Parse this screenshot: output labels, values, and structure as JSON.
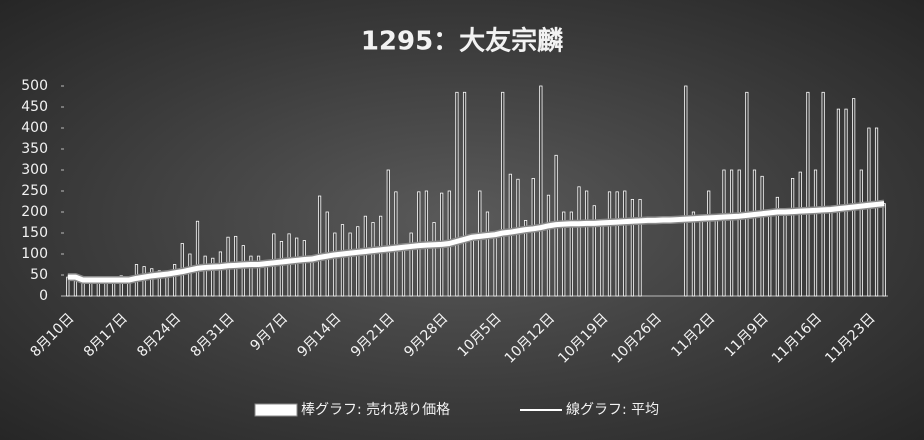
{
  "chart_data": {
    "type": "combo",
    "title": "1295：大友宗麟",
    "categories": [
      "8月10日",
      null,
      null,
      null,
      null,
      null,
      null,
      "8月17日",
      null,
      null,
      null,
      null,
      null,
      null,
      "8月24日",
      null,
      null,
      null,
      null,
      null,
      null,
      "8月31日",
      null,
      null,
      null,
      null,
      null,
      null,
      "9月7日",
      null,
      null,
      null,
      null,
      null,
      null,
      "9月14日",
      null,
      null,
      null,
      null,
      null,
      null,
      "9月21日",
      null,
      null,
      null,
      null,
      null,
      null,
      "9月28日",
      null,
      null,
      null,
      null,
      null,
      null,
      "10月5日",
      null,
      null,
      null,
      null,
      null,
      null,
      "10月12日",
      null,
      null,
      null,
      null,
      null,
      null,
      "10月19日",
      null,
      null,
      null,
      null,
      null,
      null,
      "10月26日",
      null,
      null,
      null,
      null,
      null,
      null,
      "11月2日",
      null,
      null,
      null,
      null,
      null,
      null,
      "11月9日",
      null,
      null,
      null,
      null,
      null,
      null,
      "11月16日",
      null,
      null,
      null,
      null,
      null,
      null,
      "11月23日",
      null,
      null
    ],
    "series": [
      {
        "name": "棒グラフ: 売れ残り価格",
        "type": "bar",
        "color": "#ffffff",
        "values": [
          45,
          45,
          30,
          35,
          35,
          35,
          40,
          48,
          40,
          75,
          70,
          65,
          60,
          50,
          75,
          125,
          100,
          178,
          95,
          90,
          105,
          140,
          142,
          120,
          95,
          95,
          80,
          148,
          130,
          148,
          138,
          132,
          90,
          238,
          200,
          150,
          170,
          150,
          165,
          190,
          175,
          190,
          300,
          248,
          120,
          150,
          248,
          250,
          175,
          245,
          250,
          485,
          485,
          140,
          250,
          200,
          150,
          485,
          290,
          278,
          180,
          280,
          500,
          240,
          335,
          200,
          200,
          260,
          250,
          215,
          180,
          248,
          248,
          250,
          230,
          230,
          null,
          null,
          null,
          null,
          null,
          500,
          200,
          190,
          250,
          190,
          300,
          300,
          300,
          485,
          300,
          285,
          200,
          235,
          200,
          280,
          295,
          485,
          300,
          485,
          200,
          445,
          445,
          470,
          300,
          400,
          400,
          220
        ]
      },
      {
        "name": "線グラフ: 平均",
        "type": "line",
        "color": "#ffffff",
        "values": [
          45,
          45,
          38,
          38,
          38,
          38,
          38,
          38,
          38,
          42,
          45,
          48,
          50,
          52,
          55,
          58,
          62,
          66,
          68,
          69,
          70,
          72,
          73,
          74,
          75,
          75,
          77,
          79,
          81,
          83,
          85,
          87,
          88,
          92,
          95,
          98,
          100,
          102,
          104,
          106,
          108,
          110,
          112,
          114,
          116,
          118,
          120,
          121,
          122,
          123,
          125,
          130,
          135,
          140,
          142,
          144,
          146,
          150,
          152,
          155,
          158,
          160,
          163,
          167,
          170,
          171,
          172,
          172,
          173,
          173,
          174,
          175,
          176,
          177,
          178,
          179,
          180,
          180,
          181,
          181,
          182,
          183,
          184,
          185,
          186,
          187,
          188,
          189,
          190,
          192,
          194,
          196,
          198,
          200,
          200,
          201,
          202,
          203,
          204,
          205,
          206,
          208,
          210,
          212,
          214,
          216,
          218,
          220
        ]
      }
    ],
    "ylim": [
      0,
      500
    ],
    "yticks": [
      0,
      50,
      100,
      150,
      200,
      250,
      300,
      350,
      400,
      450,
      500
    ],
    "grid": false,
    "legend": "bottom"
  }
}
